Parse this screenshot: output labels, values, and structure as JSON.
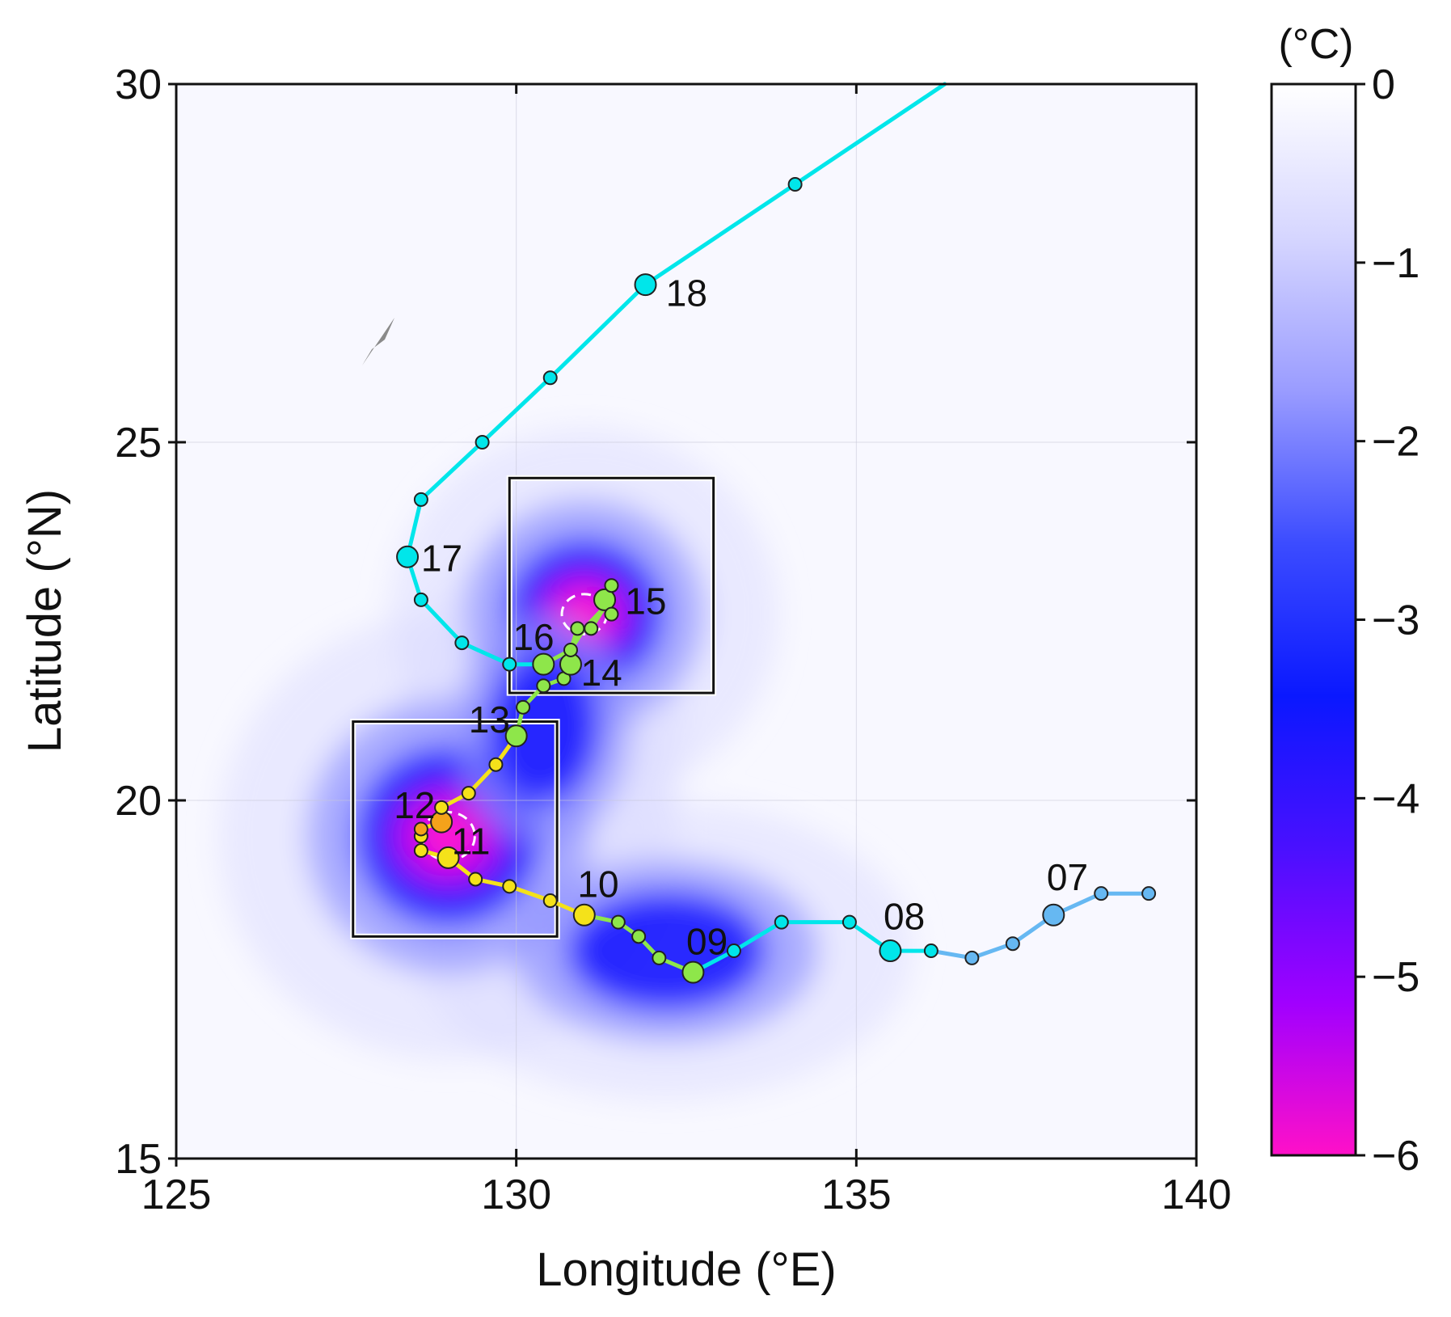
{
  "chart_data": {
    "type": "map",
    "xlabel": "Longitude (°E)",
    "ylabel": "Latitude (°N)",
    "xlim": [
      125,
      140
    ],
    "ylim": [
      15,
      30
    ],
    "xticks": [
      125,
      130,
      135,
      140
    ],
    "yticks": [
      15,
      20,
      25,
      30
    ],
    "xtick_labels": [
      "125",
      "130",
      "135",
      "140"
    ],
    "ytick_labels": [
      "15",
      "20",
      "25",
      "30"
    ],
    "grid": true,
    "colorbar": {
      "unit": "(°C)",
      "range": [
        -6,
        0
      ],
      "ticks": [
        0,
        -1,
        -2,
        -3,
        -4,
        -5,
        -6
      ],
      "tick_labels": [
        "0",
        "−1",
        "−2",
        "−3",
        "−4",
        "−5",
        "−6"
      ],
      "colors": [
        "#ff10c8",
        "#a000ff",
        "#4a10ff",
        "#0a18ff",
        "#3c4cff",
        "#9a9cff",
        "#d6d6ff",
        "#ffffff"
      ]
    },
    "cooling_field": [
      {
        "lon": 129.0,
        "lat": 19.5,
        "peak": -6.0,
        "radius_lon": 1.3,
        "radius_lat": 1.2
      },
      {
        "lon": 131.0,
        "lat": 22.6,
        "peak": -5.5,
        "radius_lon": 1.1,
        "radius_lat": 1.0
      },
      {
        "lon": 132.2,
        "lat": 17.9,
        "peak": -3.2,
        "radius_lon": 1.4,
        "radius_lat": 0.8
      },
      {
        "lon": 130.4,
        "lat": 21.0,
        "peak": -3.0,
        "radius_lon": 0.8,
        "radius_lat": 1.0
      }
    ],
    "boxes": [
      {
        "lon": [
          127.6,
          130.6
        ],
        "lat": [
          18.1,
          21.1
        ]
      },
      {
        "lon": [
          129.9,
          132.9
        ],
        "lat": [
          21.5,
          24.5
        ]
      }
    ],
    "track_segments": [
      {
        "color": "#66b8f2",
        "points": [
          [
            139.3,
            18.7
          ],
          [
            138.6,
            18.7
          ],
          [
            137.9,
            18.4
          ],
          [
            137.3,
            18.0
          ],
          [
            136.7,
            17.8
          ],
          [
            136.1,
            17.9
          ]
        ]
      },
      {
        "color": "#00e6ea",
        "points": [
          [
            136.1,
            17.9
          ],
          [
            135.5,
            17.9
          ],
          [
            134.9,
            18.3
          ],
          [
            133.9,
            18.3
          ],
          [
            133.2,
            17.9
          ],
          [
            132.6,
            17.6
          ]
        ]
      },
      {
        "color": "#8ee64a",
        "points": [
          [
            132.6,
            17.6
          ],
          [
            132.1,
            17.8
          ],
          [
            131.8,
            18.1
          ],
          [
            131.5,
            18.3
          ],
          [
            131.0,
            18.4
          ]
        ]
      },
      {
        "color": "#f4e21a",
        "points": [
          [
            131.0,
            18.4
          ],
          [
            130.5,
            18.6
          ],
          [
            129.9,
            18.8
          ],
          [
            129.4,
            18.9
          ],
          [
            129.0,
            19.2
          ],
          [
            128.6,
            19.3
          ],
          [
            128.6,
            19.5
          ],
          [
            128.6,
            19.6
          ]
        ]
      },
      {
        "color": "#f4e21a",
        "points": [
          [
            128.6,
            19.6
          ],
          [
            128.9,
            19.7
          ],
          [
            128.9,
            19.9
          ],
          [
            129.3,
            20.1
          ],
          [
            129.7,
            20.5
          ],
          [
            130.0,
            20.9
          ]
        ]
      },
      {
        "color": "#8ee64a",
        "points": [
          [
            130.0,
            20.9
          ],
          [
            130.1,
            21.3
          ],
          [
            130.4,
            21.6
          ],
          [
            130.7,
            21.7
          ],
          [
            130.8,
            21.9
          ],
          [
            130.8,
            22.1
          ],
          [
            130.9,
            22.4
          ],
          [
            131.1,
            22.4
          ],
          [
            131.3,
            22.7
          ],
          [
            131.4,
            22.7
          ],
          [
            131.4,
            23.0
          ]
        ]
      },
      {
        "color": "#8ee64a",
        "points": [
          [
            131.4,
            23.0
          ],
          [
            131.3,
            22.7
          ],
          [
            131.0,
            22.4
          ],
          [
            130.8,
            22.1
          ],
          [
            130.4,
            21.9
          ]
        ]
      },
      {
        "color": "#00e6ea",
        "points": [
          [
            130.4,
            21.9
          ],
          [
            129.9,
            21.9
          ],
          [
            129.2,
            22.2
          ],
          [
            128.6,
            22.8
          ],
          [
            128.4,
            23.4
          ],
          [
            128.6,
            24.2
          ],
          [
            129.5,
            25.0
          ],
          [
            130.5,
            25.9
          ],
          [
            131.9,
            27.2
          ],
          [
            134.1,
            28.6
          ],
          [
            136.3,
            30.0
          ]
        ]
      }
    ],
    "track_points": [
      {
        "lon": 139.3,
        "lat": 18.7,
        "size": "small",
        "color": "#66b8f2"
      },
      {
        "lon": 138.6,
        "lat": 18.7,
        "size": "small",
        "color": "#66b8f2"
      },
      {
        "lon": 137.9,
        "lat": 18.4,
        "size": "large",
        "color": "#66b8f2"
      },
      {
        "lon": 137.3,
        "lat": 18.0,
        "size": "small",
        "color": "#66b8f2"
      },
      {
        "lon": 136.7,
        "lat": 17.8,
        "size": "small",
        "color": "#66b8f2"
      },
      {
        "lon": 136.1,
        "lat": 17.9,
        "size": "small",
        "color": "#00e6ea"
      },
      {
        "lon": 135.5,
        "lat": 17.9,
        "size": "large",
        "color": "#00e6ea"
      },
      {
        "lon": 134.9,
        "lat": 18.3,
        "size": "small",
        "color": "#00e6ea"
      },
      {
        "lon": 133.9,
        "lat": 18.3,
        "size": "small",
        "color": "#00e6ea"
      },
      {
        "lon": 133.2,
        "lat": 17.9,
        "size": "small",
        "color": "#00e6ea"
      },
      {
        "lon": 132.6,
        "lat": 17.6,
        "size": "large",
        "color": "#8ee64a"
      },
      {
        "lon": 132.1,
        "lat": 17.8,
        "size": "small",
        "color": "#8ee64a"
      },
      {
        "lon": 131.8,
        "lat": 18.1,
        "size": "small",
        "color": "#8ee64a"
      },
      {
        "lon": 131.5,
        "lat": 18.3,
        "size": "small",
        "color": "#8ee64a"
      },
      {
        "lon": 131.0,
        "lat": 18.4,
        "size": "large",
        "color": "#f4e21a"
      },
      {
        "lon": 130.5,
        "lat": 18.6,
        "size": "small",
        "color": "#f4e21a"
      },
      {
        "lon": 129.9,
        "lat": 18.8,
        "size": "small",
        "color": "#f4e21a"
      },
      {
        "lon": 129.4,
        "lat": 18.9,
        "size": "small",
        "color": "#f4e21a"
      },
      {
        "lon": 129.0,
        "lat": 19.2,
        "size": "large",
        "color": "#f4e21a"
      },
      {
        "lon": 128.6,
        "lat": 19.3,
        "size": "small",
        "color": "#f4e21a"
      },
      {
        "lon": 128.6,
        "lat": 19.5,
        "size": "small",
        "color": "#f4e21a"
      },
      {
        "lon": 128.6,
        "lat": 19.6,
        "size": "small",
        "color": "#f4a21a"
      },
      {
        "lon": 128.9,
        "lat": 19.7,
        "size": "large",
        "color": "#f4a21a"
      },
      {
        "lon": 128.9,
        "lat": 19.9,
        "size": "small",
        "color": "#f4e21a"
      },
      {
        "lon": 129.3,
        "lat": 20.1,
        "size": "small",
        "color": "#f4e21a"
      },
      {
        "lon": 129.7,
        "lat": 20.5,
        "size": "small",
        "color": "#f4e21a"
      },
      {
        "lon": 130.0,
        "lat": 20.9,
        "size": "large",
        "color": "#8ee64a"
      },
      {
        "lon": 130.1,
        "lat": 21.3,
        "size": "small",
        "color": "#8ee64a"
      },
      {
        "lon": 130.4,
        "lat": 21.6,
        "size": "small",
        "color": "#8ee64a"
      },
      {
        "lon": 130.7,
        "lat": 21.7,
        "size": "small",
        "color": "#8ee64a"
      },
      {
        "lon": 130.8,
        "lat": 21.9,
        "size": "large",
        "color": "#8ee64a"
      },
      {
        "lon": 130.8,
        "lat": 22.1,
        "size": "small",
        "color": "#8ee64a"
      },
      {
        "lon": 130.9,
        "lat": 22.4,
        "size": "small",
        "color": "#8ee64a"
      },
      {
        "lon": 131.1,
        "lat": 22.4,
        "size": "small",
        "color": "#8ee64a"
      },
      {
        "lon": 131.3,
        "lat": 22.8,
        "size": "large",
        "color": "#8ee64a"
      },
      {
        "lon": 131.4,
        "lat": 22.6,
        "size": "small",
        "color": "#8ee64a"
      },
      {
        "lon": 131.4,
        "lat": 23.0,
        "size": "small",
        "color": "#8ee64a"
      },
      {
        "lon": 130.4,
        "lat": 21.9,
        "size": "large",
        "color": "#8ee64a"
      },
      {
        "lon": 129.9,
        "lat": 21.9,
        "size": "small",
        "color": "#00e6ea"
      },
      {
        "lon": 129.2,
        "lat": 22.2,
        "size": "small",
        "color": "#00e6ea"
      },
      {
        "lon": 128.6,
        "lat": 22.8,
        "size": "small",
        "color": "#00e6ea"
      },
      {
        "lon": 128.4,
        "lat": 23.4,
        "size": "large",
        "color": "#00e6ea"
      },
      {
        "lon": 128.6,
        "lat": 24.2,
        "size": "small",
        "color": "#00e6ea"
      },
      {
        "lon": 129.5,
        "lat": 25.0,
        "size": "small",
        "color": "#00e6ea"
      },
      {
        "lon": 130.5,
        "lat": 25.9,
        "size": "small",
        "color": "#00e6ea"
      },
      {
        "lon": 131.9,
        "lat": 27.2,
        "size": "large",
        "color": "#00e6ea"
      },
      {
        "lon": 134.1,
        "lat": 28.6,
        "size": "small",
        "color": "#00e6ea"
      }
    ],
    "day_labels": [
      {
        "text": "07",
        "lon": 137.8,
        "lat": 18.75
      },
      {
        "text": "08",
        "lon": 135.4,
        "lat": 18.2
      },
      {
        "text": "09",
        "lon": 132.5,
        "lat": 17.85
      },
      {
        "text": "10",
        "lon": 130.9,
        "lat": 18.65
      },
      {
        "text": "11",
        "lon": 129.05,
        "lat": 19.25
      },
      {
        "text": "12",
        "lon": 128.2,
        "lat": 19.75
      },
      {
        "text": "13",
        "lon": 129.3,
        "lat": 20.95
      },
      {
        "text": "14",
        "lon": 130.95,
        "lat": 21.6
      },
      {
        "text": "15",
        "lon": 131.6,
        "lat": 22.6
      },
      {
        "text": "16",
        "lon": 129.95,
        "lat": 22.1
      },
      {
        "text": "17",
        "lon": 128.6,
        "lat": 23.2
      },
      {
        "text": "18",
        "lon": 132.2,
        "lat": 26.9
      }
    ]
  }
}
